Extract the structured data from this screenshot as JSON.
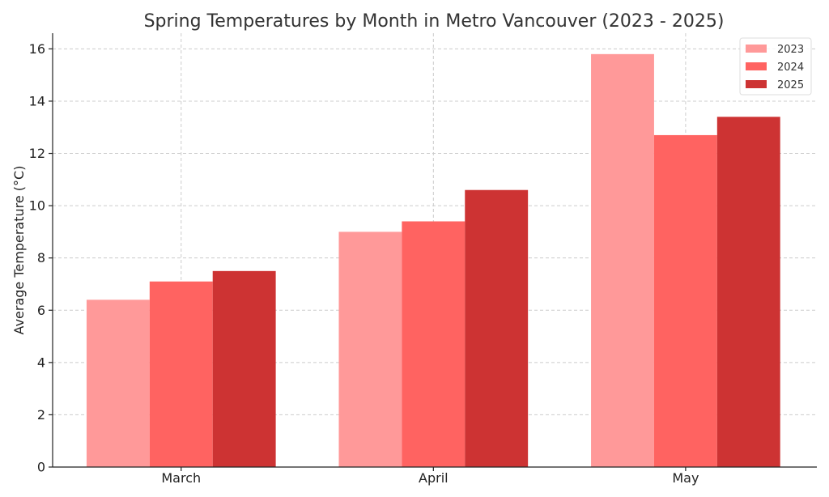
{
  "chart_data": {
    "type": "bar",
    "title": "Spring Temperatures by Month in Metro Vancouver (2023 - 2025)",
    "xlabel": "",
    "ylabel": "Average Temperature (°C)",
    "categories": [
      "March",
      "April",
      "May"
    ],
    "series": [
      {
        "name": "2023",
        "color": "#ff9999",
        "values": [
          6.4,
          9.0,
          15.8
        ]
      },
      {
        "name": "2024",
        "color": "#ff6361",
        "values": [
          7.1,
          9.4,
          12.7
        ]
      },
      {
        "name": "2025",
        "color": "#cd3333",
        "values": [
          7.5,
          10.6,
          13.4
        ]
      }
    ],
    "ylim": [
      0,
      16.6
    ],
    "yticks": [
      0,
      2,
      4,
      6,
      8,
      10,
      12,
      14,
      16
    ],
    "grid": true,
    "legend_position": "top-right"
  }
}
